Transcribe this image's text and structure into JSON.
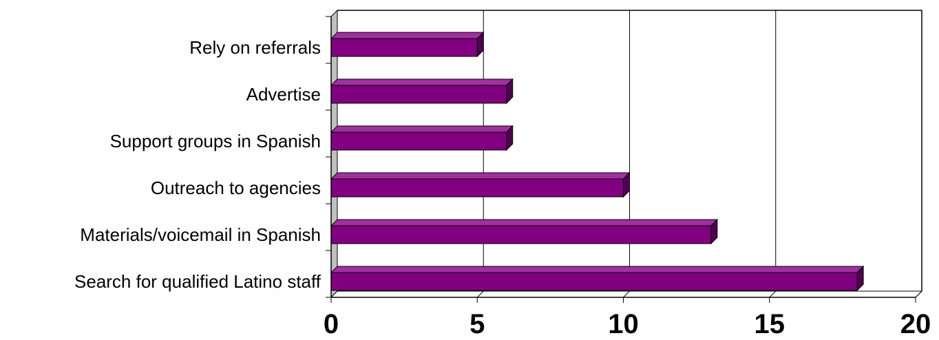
{
  "chart_data": {
    "type": "bar",
    "orientation": "horizontal",
    "style": "3d",
    "categories": [
      "Search for qualified Latino staff",
      "Materials/voicemail in Spanish",
      "Outreach to agencies",
      "Support groups in Spanish",
      "Advertise",
      "Rely on referrals"
    ],
    "series": [
      {
        "values": [
          18,
          13,
          10,
          6,
          6,
          5
        ]
      }
    ],
    "xlim": [
      0,
      20
    ],
    "xticks": [
      0,
      5,
      10,
      15,
      20
    ],
    "title": "",
    "xlabel": "",
    "ylabel": "",
    "grid": "vertical",
    "legend": "none",
    "colors": {
      "bar_front": "#800080",
      "bar_top": "#a030a0",
      "bar_side": "#500050",
      "wall": "#c0c0c0",
      "gridline": "#000000"
    }
  }
}
